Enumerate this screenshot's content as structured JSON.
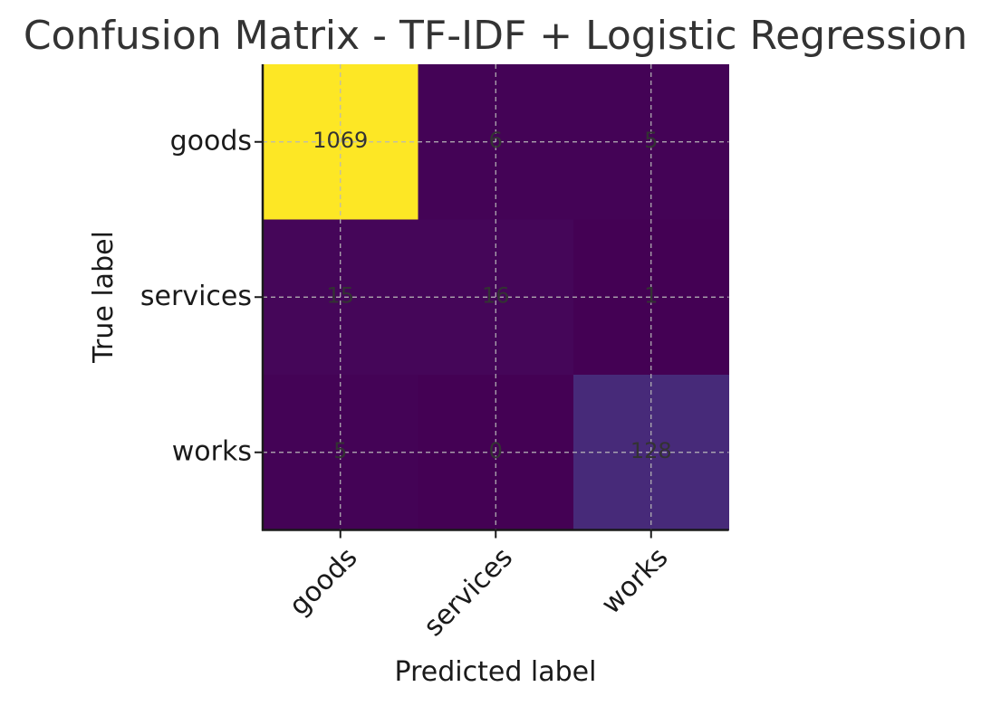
{
  "chart_data": {
    "type": "heatmap",
    "title": "Confusion Matrix - TF-IDF + Logistic Regression",
    "xlabel": "Predicted label",
    "ylabel": "True label",
    "x_categories": [
      "goods",
      "services",
      "works"
    ],
    "y_categories": [
      "goods",
      "services",
      "works"
    ],
    "values": [
      [
        1069,
        6,
        5
      ],
      [
        15,
        16,
        1
      ],
      [
        5,
        0,
        128
      ]
    ],
    "colormap": "viridis",
    "grid": true
  }
}
